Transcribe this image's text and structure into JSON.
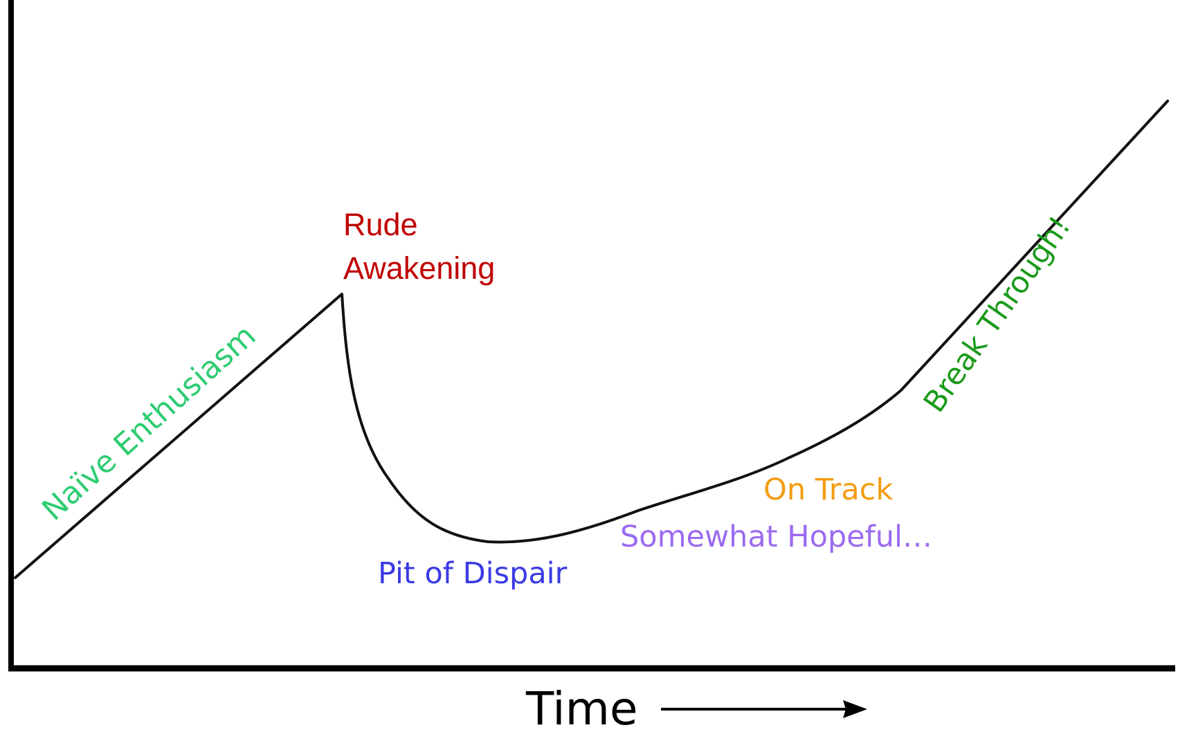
{
  "labels": {
    "naive": "Naïve Enthusiasm",
    "rude_line1": "Rude",
    "rude_line2": "Awakening",
    "pit": "Pit of Dispair",
    "on_track": "On Track",
    "hopeful": "Somewhat Hopeful…",
    "break": "Break Through!"
  },
  "x_axis_label": "Time"
}
